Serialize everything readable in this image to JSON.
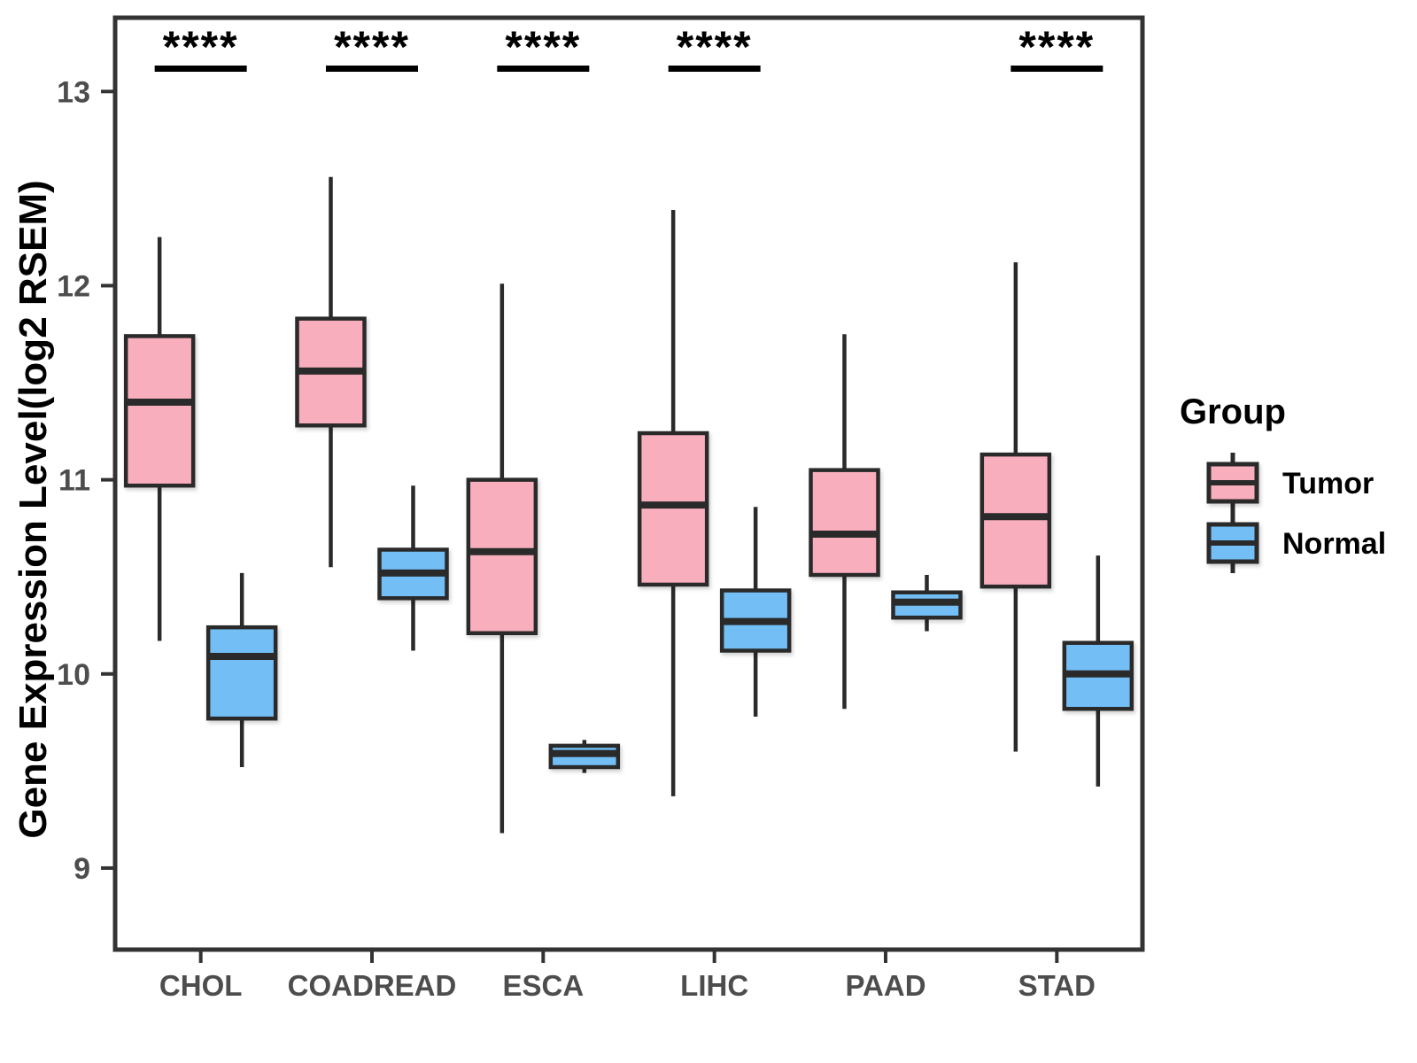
{
  "chart_data": {
    "type": "boxplot",
    "title": "",
    "ylabel": "Gene Expression Level(log2 RSEM)",
    "xlabel": "",
    "categories": [
      "CHOL",
      "COADREAD",
      "ESCA",
      "LIHC",
      "PAAD",
      "STAD"
    ],
    "yticks": [
      9,
      10,
      11,
      12,
      13
    ],
    "ylim": [
      8.58,
      13.38
    ],
    "grid": false,
    "legend": {
      "title": "Group",
      "position": "right",
      "entries": [
        {
          "label": "Tumor",
          "color": "#F9AEBD"
        },
        {
          "label": "Normal",
          "color": "#72BEF5"
        }
      ]
    },
    "series": [
      {
        "name": "Tumor",
        "color": "#F9AEBD",
        "boxes": [
          {
            "category": "CHOL",
            "min": 10.17,
            "q1": 10.97,
            "median": 11.4,
            "q3": 11.74,
            "max": 12.25
          },
          {
            "category": "COADREAD",
            "min": 10.55,
            "q1": 11.28,
            "median": 11.56,
            "q3": 11.83,
            "max": 12.56
          },
          {
            "category": "ESCA",
            "min": 9.18,
            "q1": 10.21,
            "median": 10.63,
            "q3": 11.0,
            "max": 12.01
          },
          {
            "category": "LIHC",
            "min": 9.37,
            "q1": 10.46,
            "median": 10.87,
            "q3": 11.24,
            "max": 12.39
          },
          {
            "category": "PAAD",
            "min": 9.82,
            "q1": 10.51,
            "median": 10.72,
            "q3": 11.05,
            "max": 11.75
          },
          {
            "category": "STAD",
            "min": 9.6,
            "q1": 10.45,
            "median": 10.81,
            "q3": 11.13,
            "max": 12.12
          }
        ]
      },
      {
        "name": "Normal",
        "color": "#72BEF5",
        "boxes": [
          {
            "category": "CHOL",
            "min": 9.52,
            "q1": 9.77,
            "median": 10.09,
            "q3": 10.24,
            "max": 10.52
          },
          {
            "category": "COADREAD",
            "min": 10.12,
            "q1": 10.39,
            "median": 10.52,
            "q3": 10.64,
            "max": 10.97
          },
          {
            "category": "ESCA",
            "min": 9.49,
            "q1": 9.52,
            "median": 9.59,
            "q3": 9.63,
            "max": 9.66
          },
          {
            "category": "LIHC",
            "min": 9.78,
            "q1": 10.12,
            "median": 10.27,
            "q3": 10.43,
            "max": 10.86
          },
          {
            "category": "PAAD",
            "min": 10.22,
            "q1": 10.29,
            "median": 10.37,
            "q3": 10.42,
            "max": 10.51
          },
          {
            "category": "STAD",
            "min": 9.42,
            "q1": 9.82,
            "median": 10.0,
            "q3": 10.16,
            "max": 10.61
          }
        ]
      }
    ],
    "significance": [
      {
        "category": "CHOL",
        "label": "****"
      },
      {
        "category": "COADREAD",
        "label": "****"
      },
      {
        "category": "ESCA",
        "label": "****"
      },
      {
        "category": "LIHC",
        "label": "****"
      },
      {
        "category": "STAD",
        "label": "****"
      }
    ]
  },
  "appearance": {
    "background": "#FFFFFF",
    "panel_border": "#333333",
    "box_stroke": "#2A2A2A",
    "tick_color": "#333333",
    "tick_label_color": "#4D4D4D",
    "axis_title_color": "#000000",
    "significance_color": "#000000"
  }
}
